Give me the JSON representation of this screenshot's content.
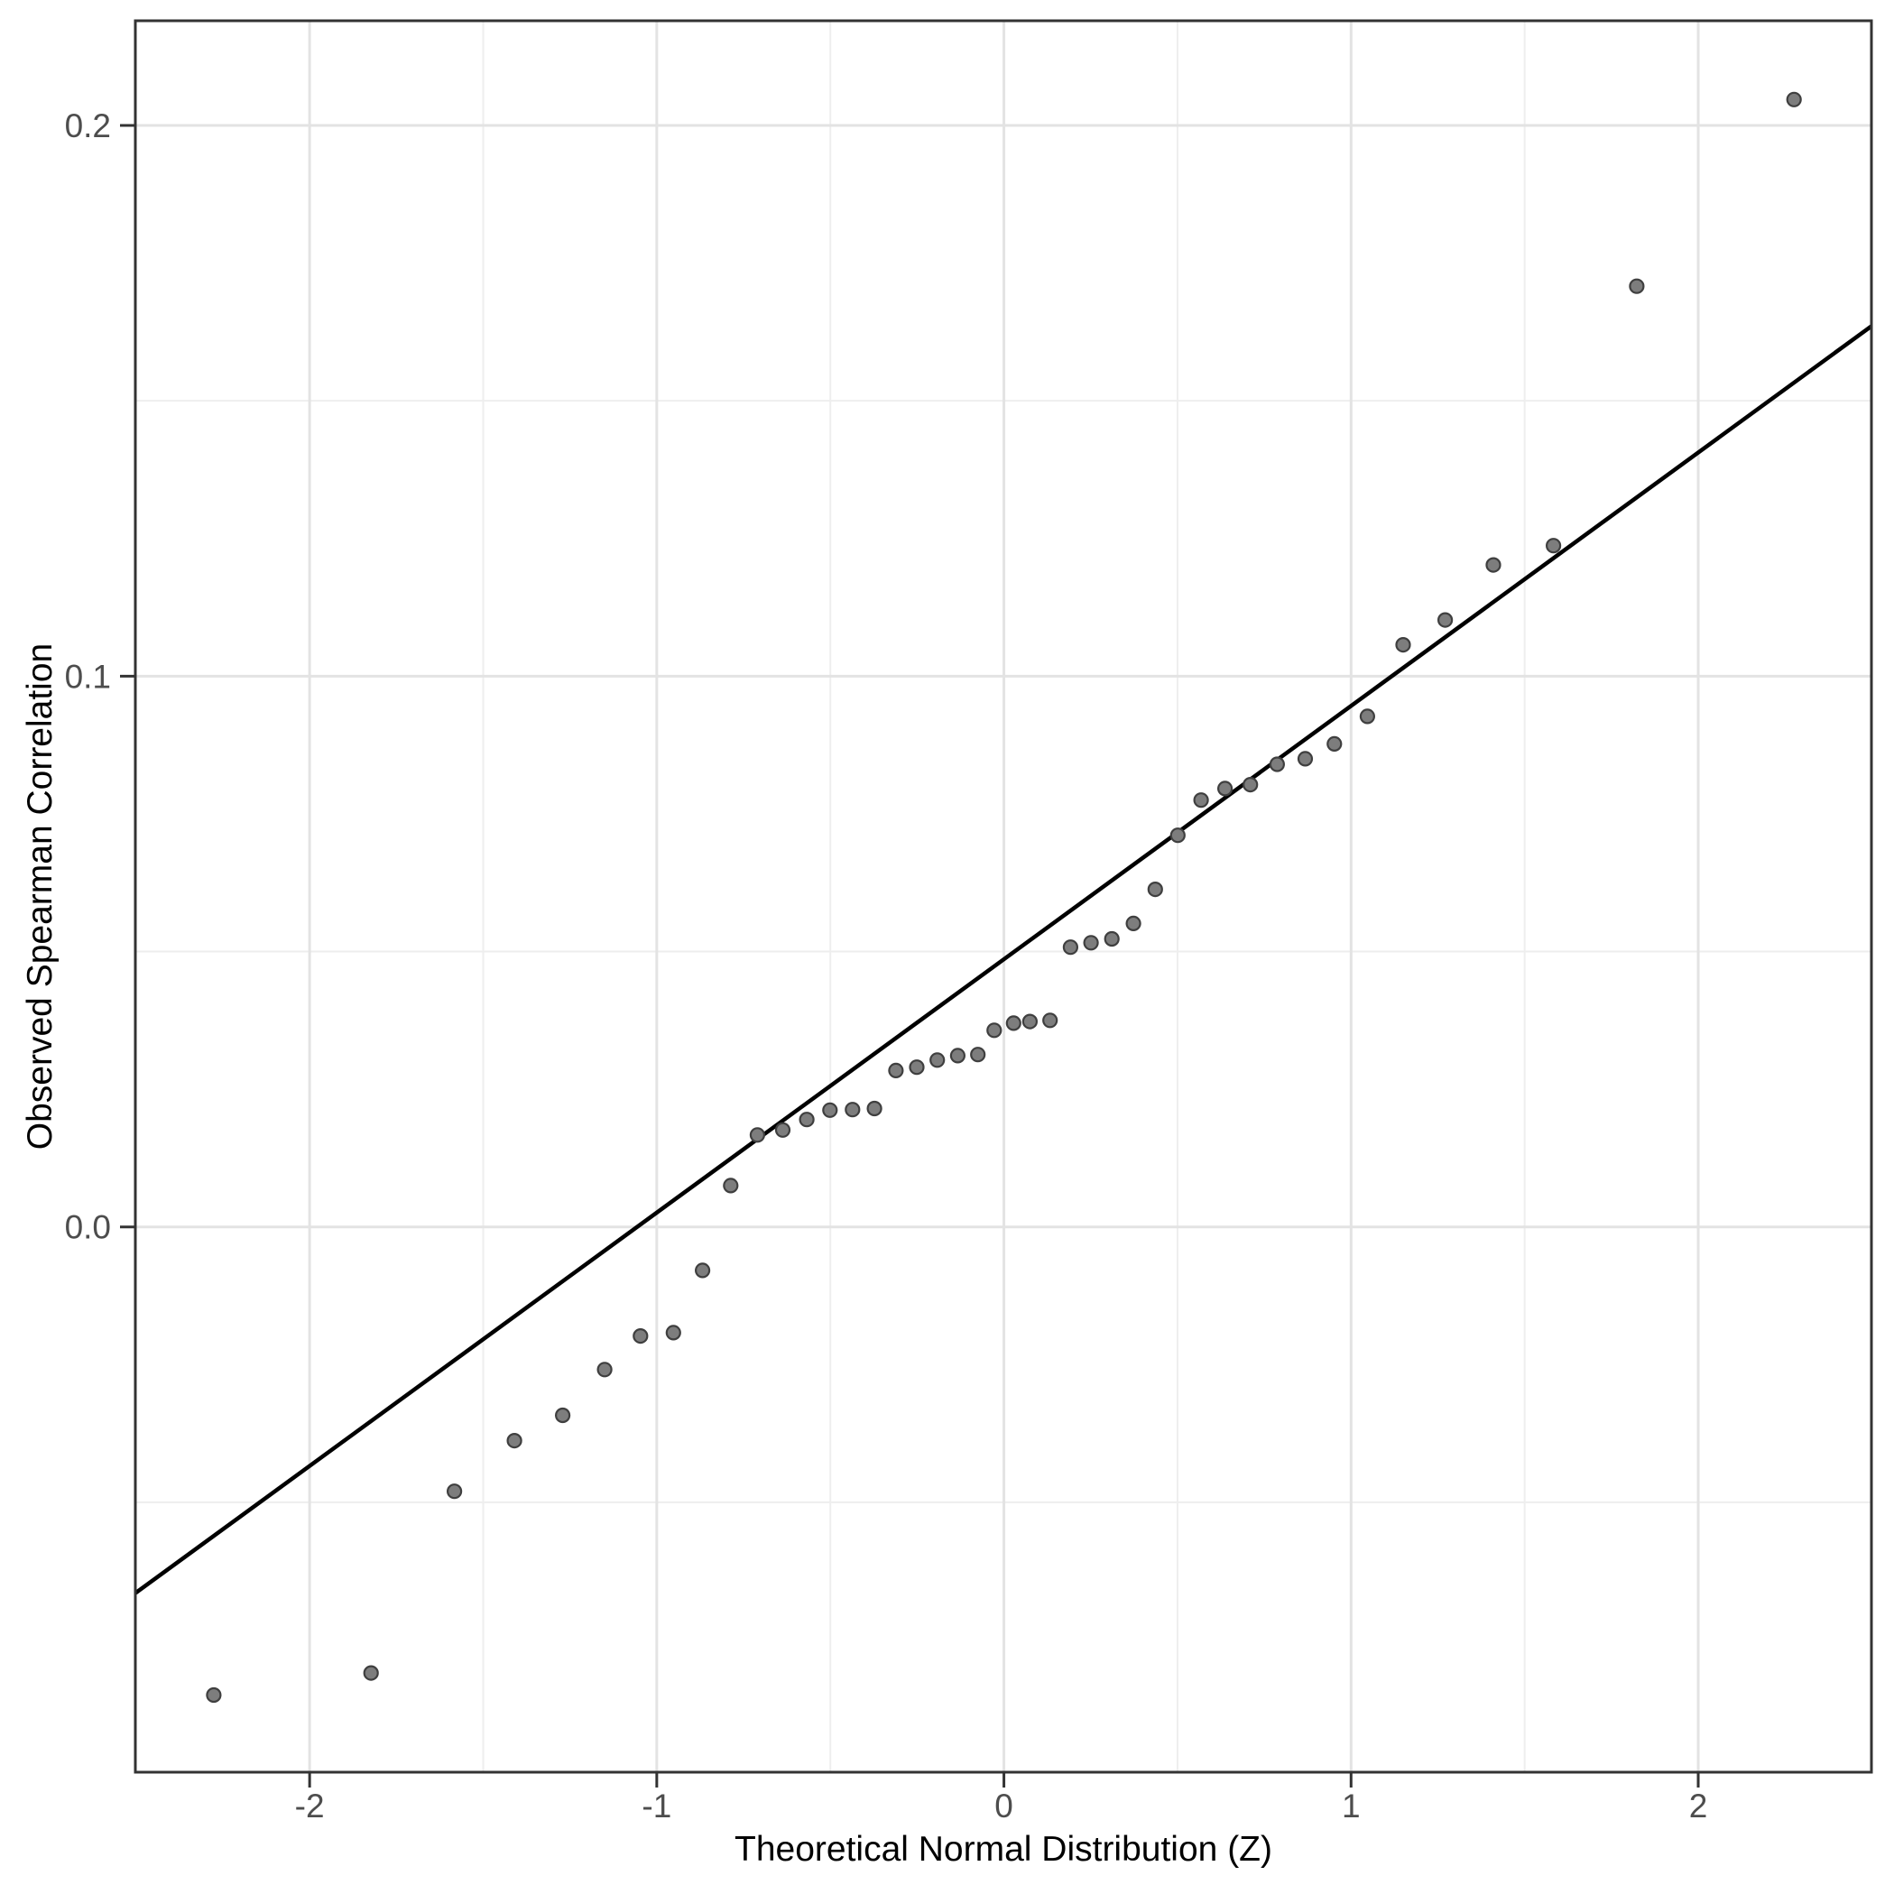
{
  "chart_data": {
    "type": "scatter",
    "title": "",
    "xlabel": "Theoretical Normal Distribution (Z)",
    "ylabel": "Observed Spearman Correlation",
    "xlim": [
      -2.502,
      2.499
    ],
    "ylim": [
      -0.099,
      0.219
    ],
    "grid": "major+minor",
    "legend_position": "none",
    "x_axis": {
      "tick_values": [
        -2,
        -1,
        0,
        1,
        2
      ],
      "tick_labels": [
        "-2",
        "-1",
        "0",
        "1",
        "2"
      ],
      "minor_values": [
        -1.5,
        -0.5,
        0.5,
        1.5
      ]
    },
    "y_axis": {
      "tick_values": [
        0.2,
        0.1,
        0
      ],
      "tick_labels": [
        "0.2",
        "0.1",
        "0.0"
      ],
      "minor_values": [
        0.15,
        0.05,
        -0.05
      ]
    },
    "series": [
      {
        "name": "observed-quantiles",
        "type": "scatter",
        "x": [
          -2.276,
          -1.823,
          -1.583,
          -1.41,
          -1.271,
          -1.15,
          -1.047,
          -0.952,
          -0.868,
          -0.787,
          -0.71,
          -0.637,
          -0.568,
          -0.501,
          -0.436,
          -0.373,
          -0.311,
          -0.251,
          -0.192,
          -0.133,
          -0.075,
          -0.028,
          0.028,
          0.075,
          0.133,
          0.192,
          0.251,
          0.311,
          0.373,
          0.436,
          0.501,
          0.568,
          0.637,
          0.71,
          0.787,
          0.868,
          0.952,
          1.047,
          1.15,
          1.271,
          1.41,
          1.583,
          1.823,
          2.276
        ],
        "y": [
          -0.085,
          -0.081,
          -0.048,
          -0.0388,
          -0.0342,
          -0.0259,
          -0.0198,
          -0.0192,
          -0.0079,
          0.0075,
          0.0167,
          0.0176,
          0.0195,
          0.0212,
          0.0213,
          0.0215,
          0.0284,
          0.029,
          0.0303,
          0.0311,
          0.0313,
          0.0357,
          0.037,
          0.0373,
          0.0375,
          0.0508,
          0.0516,
          0.0523,
          0.0551,
          0.0613,
          0.0711,
          0.0775,
          0.0796,
          0.0803,
          0.084,
          0.085,
          0.0877,
          0.0927,
          0.1057,
          0.1102,
          0.1202,
          0.1237,
          0.1708,
          0.2047
        ]
      },
      {
        "name": "qq-reference-line",
        "type": "abline",
        "slope": 0.046,
        "intercept": 0.0486
      }
    ]
  },
  "style": {
    "background": "#ffffff",
    "panel_background": "#ffffff",
    "panel_border_color": "#333333",
    "grid_major_color": "#e3e3e3",
    "grid_minor_color": "#eeeeee",
    "tick_mark_color": "#333333",
    "tick_label_color": "#4d4d4d",
    "axis_title_color": "#000000",
    "point_fill": "#7d7d7d",
    "point_stroke": "#3f3f3f",
    "line_color": "#000000"
  }
}
